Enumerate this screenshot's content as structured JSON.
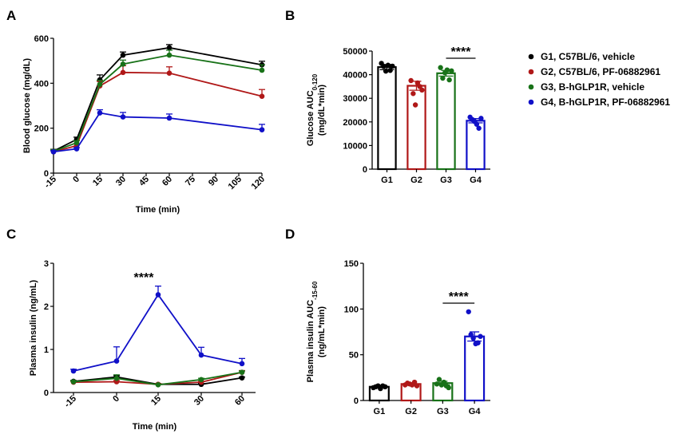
{
  "colors": {
    "G1": "#000000",
    "G2": "#b01818",
    "G3": "#187218",
    "G4": "#1010c8"
  },
  "legend": [
    {
      "key": "G1",
      "label": "G1, C57BL/6, vehicle"
    },
    {
      "key": "G2",
      "label": "G2, C57BL/6, PF-06882961"
    },
    {
      "key": "G3",
      "label": "G3, B-hGLP1R, vehicle"
    },
    {
      "key": "G4",
      "label": "G4, B-hGLP1R, PF-06882961"
    }
  ],
  "chart_data": [
    {
      "panel": "A",
      "type": "line",
      "xlabel": "Time (min)",
      "ylabel": "Blood glucose (mg/dL)",
      "x": [
        -15,
        0,
        15,
        30,
        60,
        120
      ],
      "xticks": [
        "-15",
        "0",
        "15",
        "30",
        "45",
        "60",
        "75",
        "90",
        "105",
        "120"
      ],
      "xlim": [
        -15,
        120
      ],
      "yticks": [
        "0",
        "200",
        "400",
        "600"
      ],
      "ylim": [
        0,
        600
      ],
      "series": [
        {
          "name": "G1",
          "values": [
            98,
            150,
            415,
            525,
            558,
            482
          ],
          "errors": [
            8,
            10,
            22,
            14,
            14,
            16
          ]
        },
        {
          "name": "G2",
          "values": [
            95,
            122,
            388,
            448,
            445,
            342
          ],
          "errors": [
            6,
            8,
            20,
            30,
            28,
            30
          ]
        },
        {
          "name": "G3",
          "values": [
            97,
            135,
            395,
            485,
            525,
            458
          ],
          "errors": [
            7,
            9,
            18,
            18,
            22,
            24
          ]
        },
        {
          "name": "G4",
          "values": [
            95,
            108,
            268,
            250,
            245,
            193
          ],
          "errors": [
            5,
            6,
            14,
            20,
            18,
            24
          ]
        }
      ]
    },
    {
      "panel": "B",
      "type": "bar",
      "ylabel_line1": "Glucose AUC",
      "ylabel_sub": "0-120",
      "ylabel_line2": "(mg/dL*min)",
      "categories": [
        "G1",
        "G2",
        "G3",
        "G4"
      ],
      "values": [
        43200,
        35300,
        40600,
        20500
      ],
      "errors": [
        1100,
        1900,
        1200,
        900
      ],
      "points": [
        [
          44800,
          43500,
          41500,
          44000,
          41800,
          43600
        ],
        [
          37500,
          32000,
          27200,
          36500,
          35000,
          33500
        ],
        [
          43000,
          38500,
          40800,
          42000,
          37800,
          41600
        ],
        [
          22000,
          21000,
          20200,
          19000,
          17300,
          21500
        ]
      ],
      "yticks": [
        "0",
        "10000",
        "20000",
        "30000",
        "40000",
        "50000"
      ],
      "ylim": [
        0,
        50000
      ],
      "significance": "****"
    },
    {
      "panel": "C",
      "type": "line",
      "xlabel": "Time (min)",
      "ylabel": "Plasma insulin (ng/mL)",
      "x": [
        -15,
        0,
        15,
        30,
        60
      ],
      "xticks": [
        "-15",
        "0",
        "15",
        "30",
        "60"
      ],
      "yticks": [
        "0",
        "1",
        "2",
        "3"
      ],
      "ylim": [
        0,
        3
      ],
      "series": [
        {
          "name": "G1",
          "values": [
            0.26,
            0.36,
            0.19,
            0.19,
            0.34
          ],
          "errors": [
            0.02,
            0.03,
            0.02,
            0.02,
            0.02
          ]
        },
        {
          "name": "G2",
          "values": [
            0.24,
            0.25,
            0.19,
            0.24,
            0.47
          ],
          "errors": [
            0.02,
            0.03,
            0.02,
            0.02,
            0.04
          ]
        },
        {
          "name": "G3",
          "values": [
            0.25,
            0.33,
            0.18,
            0.3,
            0.47
          ],
          "errors": [
            0.02,
            0.08,
            0.02,
            0.03,
            0.03
          ]
        },
        {
          "name": "G4",
          "values": [
            0.5,
            0.73,
            2.27,
            0.87,
            0.67
          ],
          "errors": [
            0.04,
            0.33,
            0.2,
            0.18,
            0.12
          ]
        }
      ],
      "significance": "****"
    },
    {
      "panel": "D",
      "type": "bar",
      "ylabel_line1": "Plasma insulin AUC",
      "ylabel_sub": "-15-60",
      "ylabel_line2": "(ng/mL*min)",
      "categories": [
        "G1",
        "G2",
        "G3",
        "G4"
      ],
      "values": [
        15,
        18,
        19,
        70
      ],
      "errors": [
        1,
        1.5,
        2,
        5
      ],
      "points": [
        [
          14,
          15,
          16,
          13,
          16,
          15
        ],
        [
          17,
          19,
          18,
          17,
          20,
          16
        ],
        [
          18,
          23,
          17,
          20,
          16,
          14
        ],
        [
          97,
          72,
          68,
          62,
          63,
          70
        ]
      ],
      "yticks": [
        "0",
        "50",
        "100",
        "150"
      ],
      "ylim": [
        0,
        150
      ],
      "significance": "****"
    }
  ]
}
